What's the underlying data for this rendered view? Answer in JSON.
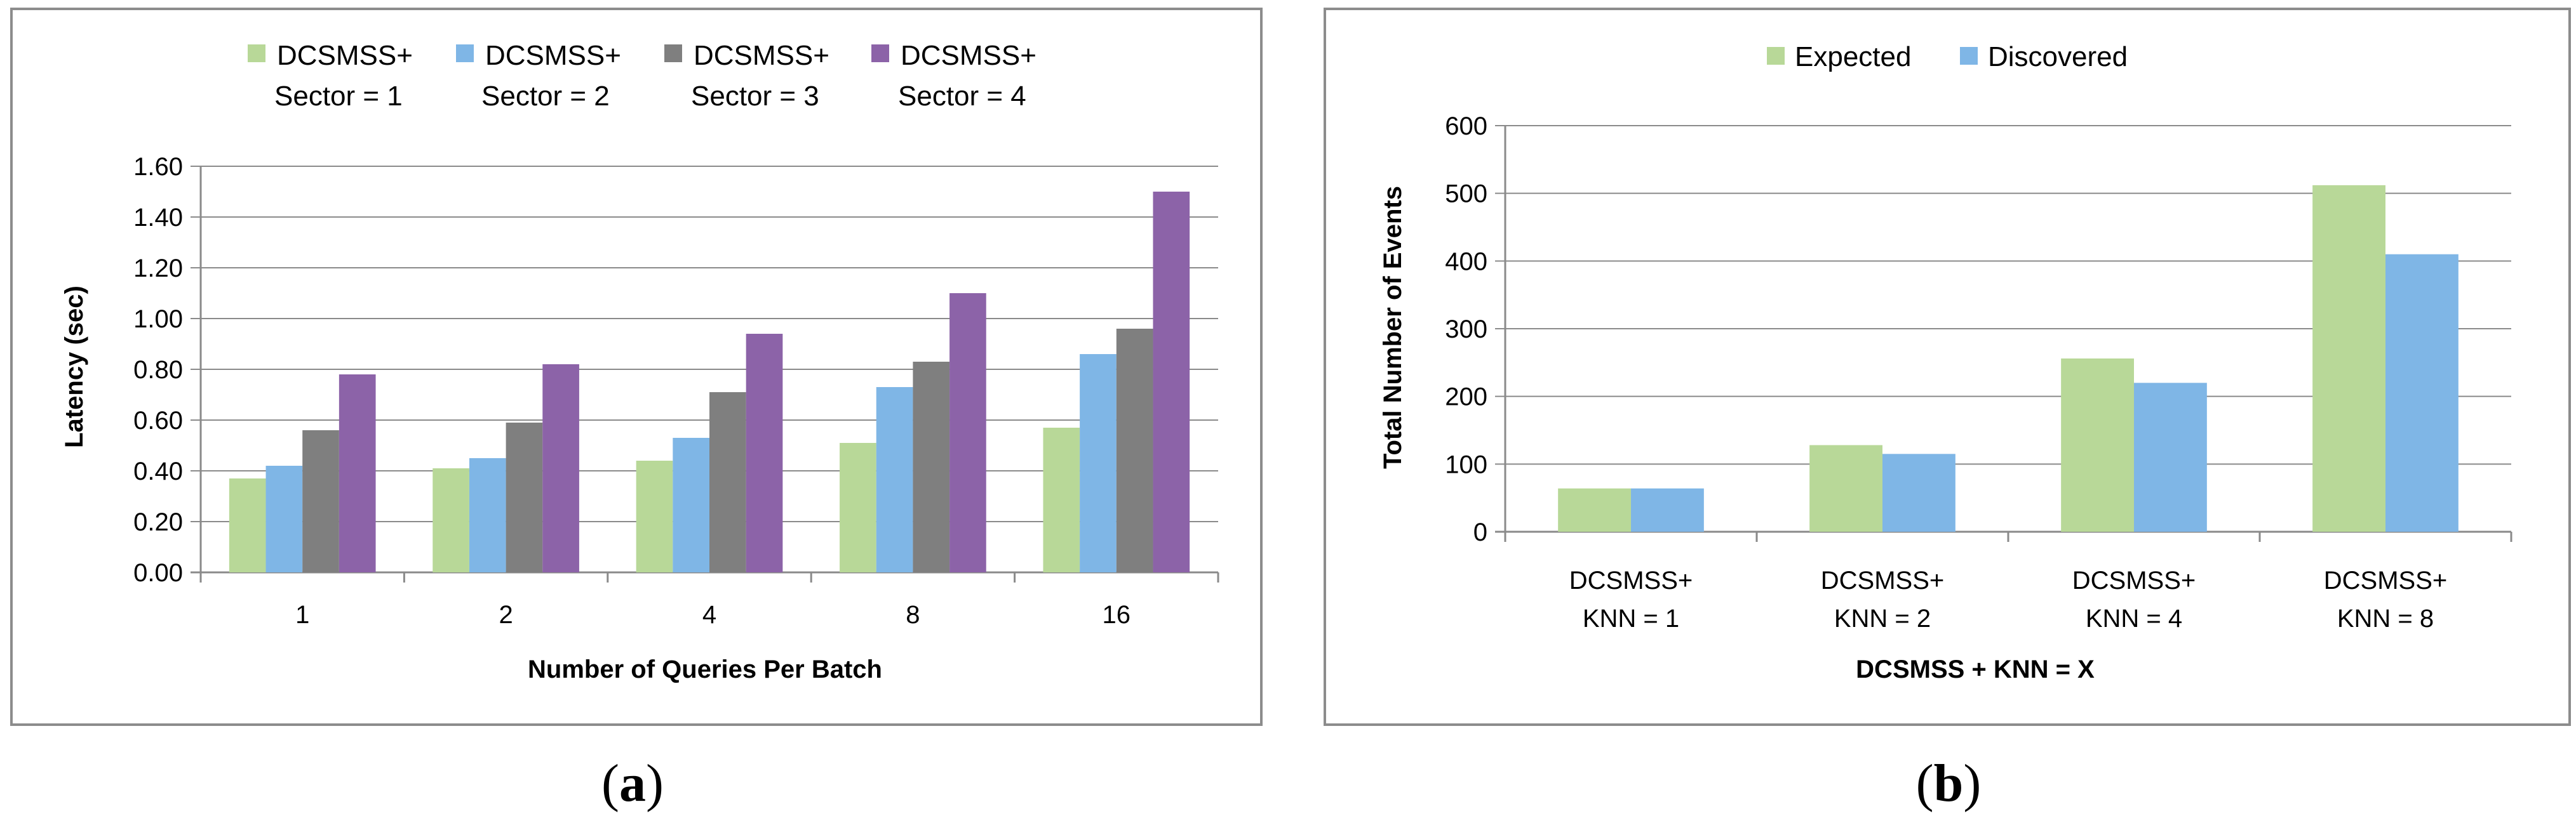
{
  "chart_data": [
    {
      "type": "bar",
      "caption": "a",
      "title": "",
      "xlabel": "Number of Queries Per Batch",
      "ylabel": "Latency (sec)",
      "ylim": [
        0,
        1.6
      ],
      "y_ticks": [
        "0.00",
        "0.20",
        "0.40",
        "0.60",
        "0.80",
        "1.00",
        "1.20",
        "1.40",
        "1.60"
      ],
      "categories": [
        "1",
        "2",
        "4",
        "8",
        "16"
      ],
      "grid": true,
      "legend_position": "top",
      "series": [
        {
          "name_line1": "DCSMSS+",
          "name_line2": "Sector = 1",
          "color": "#b8d898",
          "values": [
            0.37,
            0.41,
            0.44,
            0.51,
            0.57
          ]
        },
        {
          "name_line1": "DCSMSS+",
          "name_line2": "Sector = 2",
          "color": "#7fb6e6",
          "values": [
            0.42,
            0.45,
            0.53,
            0.73,
            0.86
          ]
        },
        {
          "name_line1": "DCSMSS+",
          "name_line2": "Sector = 3",
          "color": "#7f7f7f",
          "values": [
            0.56,
            0.59,
            0.71,
            0.83,
            0.96
          ]
        },
        {
          "name_line1": "DCSMSS+",
          "name_line2": "Sector = 4",
          "color": "#8c63a8",
          "values": [
            0.78,
            0.82,
            0.94,
            1.1,
            1.5
          ]
        }
      ]
    },
    {
      "type": "bar",
      "caption": "b",
      "title": "",
      "xlabel": "DCSMSS + KNN = X",
      "ylabel": "Total Number of Events",
      "ylim": [
        0,
        600
      ],
      "y_ticks": [
        "0",
        "100",
        "200",
        "300",
        "400",
        "500",
        "600"
      ],
      "categories": [
        {
          "line1": "DCSMSS+",
          "line2": "KNN = 1"
        },
        {
          "line1": "DCSMSS+",
          "line2": "KNN = 2"
        },
        {
          "line1": "DCSMSS+",
          "line2": "KNN = 4"
        },
        {
          "line1": "DCSMSS+",
          "line2": "KNN = 8"
        }
      ],
      "grid": true,
      "legend_position": "top",
      "series": [
        {
          "name": "Expected",
          "color": "#b8d898",
          "values": [
            64,
            128,
            256,
            512
          ]
        },
        {
          "name": "Discovered",
          "color": "#7fb6e6",
          "values": [
            64,
            115,
            220,
            410
          ]
        }
      ]
    }
  ]
}
